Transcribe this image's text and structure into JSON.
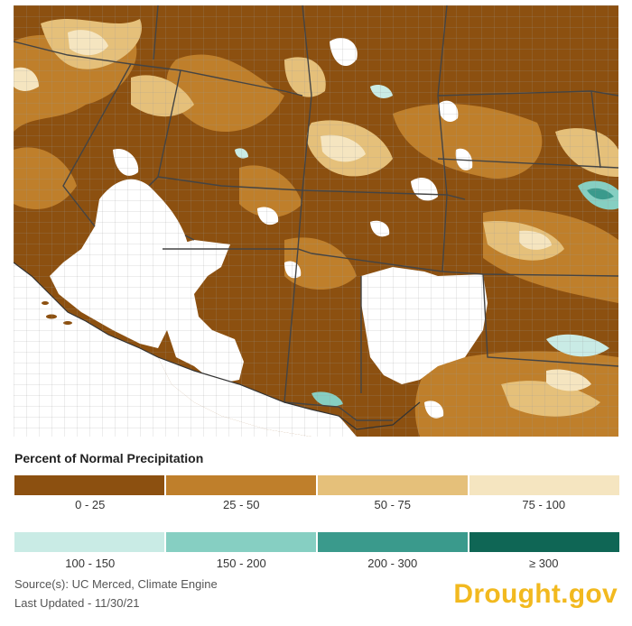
{
  "map": {
    "region": "Southwestern United States",
    "colors": {
      "0-25": "#8c5010",
      "25-50": "#bf7f2b",
      "50-75": "#e5c07a",
      "75-100": "#f5e5c0",
      "100-150": "#c9ebe5",
      "150-200": "#86cfc2",
      "200-300": "#3a9a8c",
      "gte-300": "#0f6655",
      "no-data": "#ffffff",
      "boundary": "#555555"
    }
  },
  "legend": {
    "title": "Percent of Normal Precipitation",
    "items": [
      {
        "label": "0 - 25",
        "color": "#8c5010"
      },
      {
        "label": "25 - 50",
        "color": "#bf7f2b"
      },
      {
        "label": "50 - 75",
        "color": "#e5c07a"
      },
      {
        "label": "75 - 100",
        "color": "#f5e5c0"
      },
      {
        "label": "100 - 150",
        "color": "#c9ebe5"
      },
      {
        "label": "150 - 200",
        "color": "#86cfc2"
      },
      {
        "label": "200 - 300",
        "color": "#3a9a8c"
      },
      {
        "label": "≥ 300",
        "color": "#0f6655"
      }
    ]
  },
  "footer": {
    "source": "Source(s): UC Merced, Climate Engine",
    "updated": "Last Updated - 11/30/21",
    "brand": "Drought.gov",
    "brand_color": "#f2b91f"
  }
}
